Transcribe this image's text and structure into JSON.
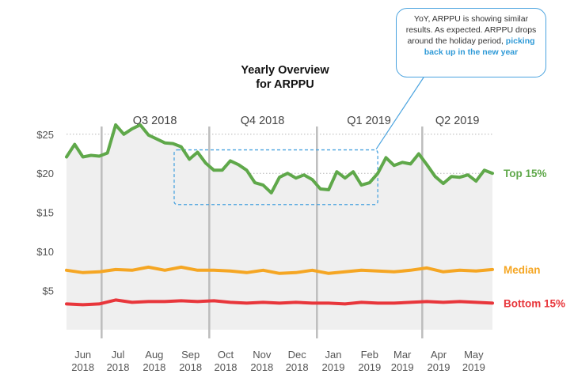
{
  "callout": {
    "text": "YoY, ARPPU is showing similar results. As expected. ARPPU drops around the holiday period, ",
    "highlight": "picking back up in the new year"
  },
  "colors": {
    "top": "#5fa84a",
    "median": "#f5a623",
    "bottom": "#e8363b",
    "callout_border": "#4aa3df",
    "quarter_line": "#bdbdbd",
    "shade": "#efefef"
  },
  "chart_data": {
    "type": "line",
    "title": "Yearly Overview\nfor ARPPU",
    "ylabel": "",
    "xlabel": "",
    "ylim": [
      0,
      27
    ],
    "grid": true,
    "yticks": [
      5,
      10,
      15,
      20,
      25
    ],
    "ytick_labels": [
      "$5",
      "$10",
      "$15",
      "$20",
      "$25"
    ],
    "x_months": [
      {
        "label": "Jun",
        "year": "2018"
      },
      {
        "label": "Jul",
        "year": "2018"
      },
      {
        "label": "Aug",
        "year": "2018"
      },
      {
        "label": "Sep",
        "year": "2018"
      },
      {
        "label": "Oct",
        "year": "2018"
      },
      {
        "label": "Nov",
        "year": "2018"
      },
      {
        "label": "Dec",
        "year": "2018"
      },
      {
        "label": "Jan",
        "year": "2019"
      },
      {
        "label": "Feb",
        "year": "2019"
      },
      {
        "label": "Mar",
        "year": "2019"
      },
      {
        "label": "Apr",
        "year": "2019"
      },
      {
        "label": "May",
        "year": "2019"
      }
    ],
    "quarters": [
      "Q3 2018",
      "Q4 2018",
      "Q1 2019",
      "Q2 2019"
    ],
    "x_start": "2018-06-01",
    "x_end": "2019-05-31",
    "series": [
      {
        "name": "Top 15%",
        "x": [
          "2018-06-01",
          "2018-06-08",
          "2018-06-15",
          "2018-06-22",
          "2018-06-29",
          "2018-07-06",
          "2018-07-13",
          "2018-07-20",
          "2018-07-27",
          "2018-08-03",
          "2018-08-10",
          "2018-08-17",
          "2018-08-24",
          "2018-08-31",
          "2018-09-07",
          "2018-09-14",
          "2018-09-21",
          "2018-09-28",
          "2018-10-05",
          "2018-10-12",
          "2018-10-19",
          "2018-10-26",
          "2018-11-02",
          "2018-11-09",
          "2018-11-16",
          "2018-11-23",
          "2018-11-30",
          "2018-12-07",
          "2018-12-14",
          "2018-12-21",
          "2018-12-28",
          "2019-01-04",
          "2019-01-11",
          "2019-01-18",
          "2019-01-25",
          "2019-02-01",
          "2019-02-08",
          "2019-02-15",
          "2019-02-22",
          "2019-03-01",
          "2019-03-08",
          "2019-03-15",
          "2019-03-22",
          "2019-03-29",
          "2019-04-05",
          "2019-04-12",
          "2019-04-19",
          "2019-04-26",
          "2019-05-03",
          "2019-05-10",
          "2019-05-17",
          "2019-05-24",
          "2019-05-31"
        ],
        "values": [
          22.1,
          23.7,
          22.1,
          22.3,
          22.2,
          22.6,
          26.2,
          25.0,
          25.7,
          26.2,
          24.9,
          24.4,
          23.9,
          23.8,
          23.4,
          21.8,
          22.7,
          21.3,
          20.4,
          20.4,
          21.6,
          21.1,
          20.4,
          18.8,
          18.5,
          17.5,
          19.5,
          20.0,
          19.4,
          19.8,
          19.2,
          18.0,
          17.9,
          20.2,
          19.4,
          20.2,
          18.5,
          18.8,
          20.0,
          22.0,
          21.0,
          21.4,
          21.2,
          22.5,
          21.1,
          19.6,
          18.7,
          19.6,
          19.5,
          19.8,
          19.0,
          20.4,
          20.0
        ]
      },
      {
        "name": "Median",
        "x": [
          "2018-06-01",
          "2018-06-15",
          "2018-06-29",
          "2018-07-13",
          "2018-07-27",
          "2018-08-10",
          "2018-08-24",
          "2018-09-07",
          "2018-09-21",
          "2018-10-05",
          "2018-10-19",
          "2018-11-02",
          "2018-11-16",
          "2018-11-30",
          "2018-12-14",
          "2018-12-28",
          "2019-01-11",
          "2019-01-25",
          "2019-02-08",
          "2019-02-22",
          "2019-03-08",
          "2019-03-22",
          "2019-04-05",
          "2019-04-19",
          "2019-05-03",
          "2019-05-17",
          "2019-05-31"
        ],
        "values": [
          7.6,
          7.3,
          7.4,
          7.7,
          7.6,
          8.0,
          7.6,
          8.0,
          7.6,
          7.6,
          7.5,
          7.3,
          7.6,
          7.2,
          7.3,
          7.6,
          7.2,
          7.4,
          7.6,
          7.5,
          7.4,
          7.6,
          7.9,
          7.4,
          7.6,
          7.5,
          7.7
        ]
      },
      {
        "name": "Bottom 15%",
        "x": [
          "2018-06-01",
          "2018-06-15",
          "2018-06-29",
          "2018-07-13",
          "2018-07-27",
          "2018-08-10",
          "2018-08-24",
          "2018-09-07",
          "2018-09-21",
          "2018-10-05",
          "2018-10-19",
          "2018-11-02",
          "2018-11-16",
          "2018-11-30",
          "2018-12-14",
          "2018-12-28",
          "2019-01-11",
          "2019-01-25",
          "2019-02-08",
          "2019-02-22",
          "2019-03-08",
          "2019-03-22",
          "2019-04-05",
          "2019-04-19",
          "2019-05-03",
          "2019-05-17",
          "2019-05-31"
        ],
        "values": [
          3.3,
          3.2,
          3.3,
          3.8,
          3.5,
          3.6,
          3.6,
          3.7,
          3.6,
          3.7,
          3.5,
          3.4,
          3.5,
          3.4,
          3.5,
          3.4,
          3.4,
          3.3,
          3.5,
          3.4,
          3.4,
          3.5,
          3.6,
          3.5,
          3.6,
          3.5,
          3.4
        ]
      }
    ],
    "highlight_box": {
      "x_from": "2018-09-01",
      "x_to": "2019-02-22",
      "y_from": 16.0,
      "y_to": 23.0
    }
  }
}
